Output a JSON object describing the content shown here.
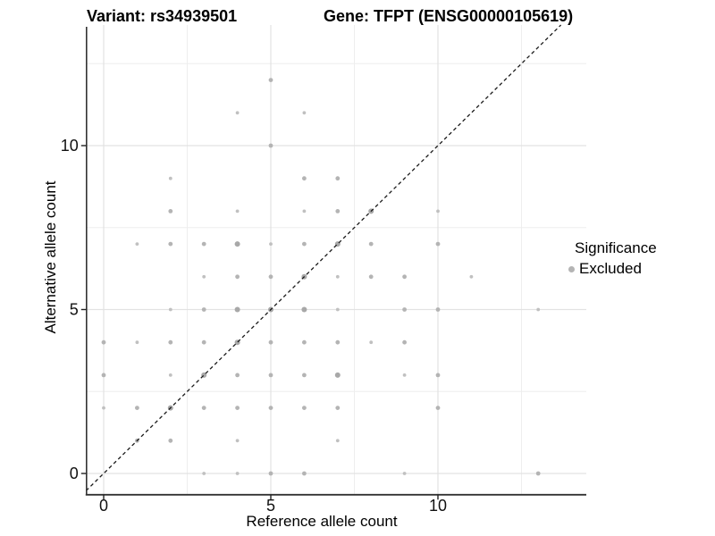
{
  "titles": {
    "left": "Variant: rs34939501",
    "right": "Gene: TFPT (ENSG00000105619)"
  },
  "chart_data": {
    "type": "scatter",
    "xlabel": "Reference allele count",
    "ylabel": "Alternative allele count",
    "xlim": [
      -0.5,
      14.4
    ],
    "ylim": [
      -0.65,
      13.7
    ],
    "x_major_ticks": [
      0,
      5,
      10
    ],
    "y_major_ticks": [
      0,
      5,
      10
    ],
    "x_minor_gridlines": [
      2.5,
      7.5,
      12.5
    ],
    "y_minor_gridlines": [
      2.5,
      7.5,
      12.5
    ],
    "grid": true,
    "identity_line": {
      "style": "dashed",
      "equation": "y = x",
      "color": "#1a1a1a"
    },
    "legend": {
      "title": "Significance",
      "position": "right",
      "items": [
        {
          "label": "Excluded",
          "color": "#b4b4b4"
        }
      ]
    },
    "series": [
      {
        "name": "Excluded",
        "color": "#b4b4b4",
        "note": "points are [reference_allele_count, alternative_allele_count, size_tier]",
        "points": [
          [
            3,
            0,
            1
          ],
          [
            4,
            0,
            1
          ],
          [
            5,
            0,
            2
          ],
          [
            6,
            0,
            2
          ],
          [
            9,
            0,
            1
          ],
          [
            13,
            0,
            2
          ],
          [
            1,
            1,
            2
          ],
          [
            2,
            1,
            2
          ],
          [
            4,
            1,
            1
          ],
          [
            7,
            1,
            1
          ],
          [
            0,
            2,
            1
          ],
          [
            1,
            2,
            2
          ],
          [
            2,
            2,
            3
          ],
          [
            3,
            2,
            2
          ],
          [
            4,
            2,
            2
          ],
          [
            5,
            2,
            2
          ],
          [
            6,
            2,
            2
          ],
          [
            7,
            2,
            2
          ],
          [
            10,
            2,
            2
          ],
          [
            0,
            3,
            2
          ],
          [
            2,
            3,
            1
          ],
          [
            3,
            3,
            3
          ],
          [
            4,
            3,
            2
          ],
          [
            5,
            3,
            2
          ],
          [
            6,
            3,
            2
          ],
          [
            7,
            3,
            3
          ],
          [
            9,
            3,
            1
          ],
          [
            10,
            3,
            2
          ],
          [
            0,
            4,
            2
          ],
          [
            1,
            4,
            1
          ],
          [
            2,
            4,
            2
          ],
          [
            3,
            4,
            2
          ],
          [
            4,
            4,
            3
          ],
          [
            5,
            4,
            2
          ],
          [
            6,
            4,
            2
          ],
          [
            7,
            4,
            2
          ],
          [
            8,
            4,
            1
          ],
          [
            9,
            4,
            2
          ],
          [
            2,
            5,
            1
          ],
          [
            3,
            5,
            2
          ],
          [
            4,
            5,
            3
          ],
          [
            5,
            5,
            3
          ],
          [
            6,
            5,
            3
          ],
          [
            7,
            5,
            1
          ],
          [
            9,
            5,
            2
          ],
          [
            10,
            5,
            2
          ],
          [
            13,
            5,
            1
          ],
          [
            3,
            6,
            1
          ],
          [
            4,
            6,
            2
          ],
          [
            5,
            6,
            2
          ],
          [
            6,
            6,
            3
          ],
          [
            7,
            6,
            1
          ],
          [
            8,
            6,
            2
          ],
          [
            9,
            6,
            2
          ],
          [
            11,
            6,
            1
          ],
          [
            1,
            7,
            1
          ],
          [
            2,
            7,
            2
          ],
          [
            3,
            7,
            2
          ],
          [
            4,
            7,
            3
          ],
          [
            5,
            7,
            1
          ],
          [
            6,
            7,
            2
          ],
          [
            7,
            7,
            3
          ],
          [
            8,
            7,
            2
          ],
          [
            10,
            7,
            2
          ],
          [
            2,
            8,
            2
          ],
          [
            4,
            8,
            1
          ],
          [
            6,
            8,
            1
          ],
          [
            7,
            8,
            2
          ],
          [
            8,
            8,
            3
          ],
          [
            10,
            8,
            1
          ],
          [
            2,
            9,
            1
          ],
          [
            6,
            9,
            2
          ],
          [
            7,
            9,
            2
          ],
          [
            5,
            10,
            2
          ],
          [
            4,
            11,
            1
          ],
          [
            6,
            11,
            1
          ],
          [
            5,
            12,
            2
          ]
        ]
      }
    ]
  },
  "colors": {
    "point_small": "#c0c0c0",
    "point_medium": "#b4b4b4",
    "point_large": "#a8a8a8",
    "grid_major": "#e2e2e2",
    "grid_minor": "#ededed",
    "axis_line": "#333333",
    "tick_text": "#111111"
  }
}
